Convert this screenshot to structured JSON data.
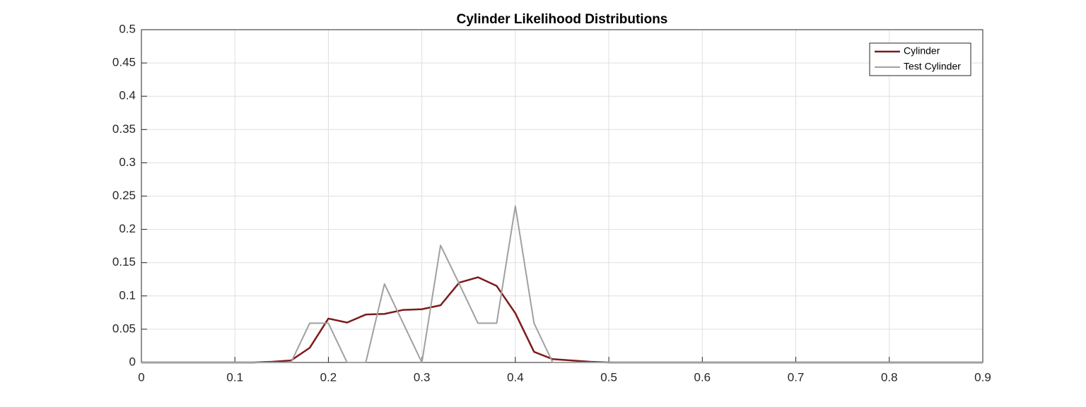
{
  "chart_data": {
    "type": "line",
    "title": "Cylinder Likelihood Distributions",
    "x": [
      0,
      0.02,
      0.04,
      0.06,
      0.08,
      0.1,
      0.12,
      0.14,
      0.16,
      0.18,
      0.2,
      0.22,
      0.24,
      0.26,
      0.28,
      0.3,
      0.32,
      0.34,
      0.36,
      0.38,
      0.4,
      0.42,
      0.44,
      0.46,
      0.48,
      0.5,
      0.52,
      0.54,
      0.56,
      0.58,
      0.6,
      0.62,
      0.64,
      0.66,
      0.68,
      0.7,
      0.72,
      0.74,
      0.76,
      0.78,
      0.8,
      0.82,
      0.84,
      0.86,
      0.88,
      0.9
    ],
    "series": [
      {
        "name": "Cylinder",
        "color": "#7e1a1a",
        "values": [
          0,
          0,
          0,
          0,
          0,
          0,
          0,
          0.001,
          0.003,
          0.022,
          0.066,
          0.06,
          0.072,
          0.073,
          0.079,
          0.08,
          0.086,
          0.12,
          0.128,
          0.115,
          0.074,
          0.016,
          0.005,
          0.003,
          0.001,
          0,
          0,
          0,
          0,
          0,
          0,
          0,
          0,
          0,
          0,
          0,
          0,
          0,
          0,
          0,
          0,
          0,
          0,
          0,
          0,
          0
        ]
      },
      {
        "name": "Test Cylinder",
        "color": "#a0a0a0",
        "values": [
          0,
          0,
          0,
          0,
          0,
          0,
          0,
          0,
          0,
          0.059,
          0.059,
          0,
          0,
          0.118,
          0.059,
          0,
          0.176,
          0.118,
          0.059,
          0.059,
          0.235,
          0.059,
          0,
          0,
          0,
          0,
          0,
          0,
          0,
          0,
          0,
          0,
          0,
          0,
          0,
          0,
          0,
          0,
          0,
          0,
          0,
          0,
          0,
          0,
          0,
          0
        ]
      }
    ],
    "xlim": [
      0,
      0.9
    ],
    "xticks": [
      0,
      0.1,
      0.2,
      0.3,
      0.4,
      0.5,
      0.6,
      0.7,
      0.8,
      0.9
    ],
    "ylim": [
      0,
      0.5
    ],
    "yticks": [
      0,
      0.05,
      0.1,
      0.15,
      0.2,
      0.25,
      0.3,
      0.35,
      0.4,
      0.45,
      0.5
    ],
    "grid": true,
    "legend_position": "northeast"
  }
}
